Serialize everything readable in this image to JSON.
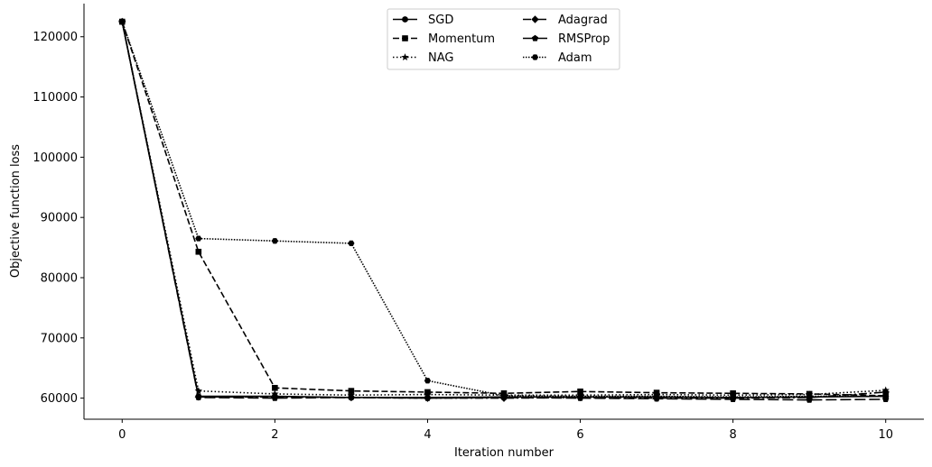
{
  "chart_data": {
    "type": "line",
    "title": "",
    "xlabel": "Iteration number",
    "ylabel": "Objective function loss",
    "x": [
      0,
      1,
      2,
      3,
      4,
      5,
      6,
      7,
      8,
      9,
      10
    ],
    "xlim": [
      -0.5,
      10.5
    ],
    "ylim": [
      56500,
      125500
    ],
    "xticks": [
      0,
      2,
      4,
      6,
      8,
      10
    ],
    "yticks": [
      60000,
      70000,
      80000,
      90000,
      100000,
      110000,
      120000
    ],
    "grid": false,
    "legend": {
      "placement": "top-center",
      "columns": 2
    },
    "series": [
      {
        "name": "SGD",
        "marker": "circle",
        "dash": "solid",
        "values": [
          122500,
          60300,
          60300,
          60100,
          60100,
          60200,
          60200,
          60200,
          60100,
          60200,
          60300
        ]
      },
      {
        "name": "Momentum",
        "marker": "square",
        "dash": "dashed",
        "values": [
          122500,
          84300,
          61700,
          61200,
          61000,
          60800,
          61100,
          60900,
          60800,
          60700,
          60400
        ]
      },
      {
        "name": "NAG",
        "marker": "star",
        "dash": "dotted",
        "values": [
          122500,
          61200,
          60700,
          60500,
          60600,
          60500,
          60500,
          60600,
          60500,
          60600,
          61300
        ]
      },
      {
        "name": "Adagrad",
        "marker": "diamond",
        "dash": "dashdot",
        "values": [
          122500,
          60200,
          60200,
          60100,
          60000,
          60000,
          60100,
          60000,
          60000,
          60100,
          61000
        ]
      },
      {
        "name": "RMSProp",
        "marker": "pentagon",
        "dash": "longdash",
        "values": [
          122500,
          60100,
          60000,
          60100,
          60000,
          60100,
          60000,
          59900,
          59800,
          59700,
          59800
        ]
      },
      {
        "name": "Adam",
        "marker": "hexagon",
        "dash": "finedot",
        "values": [
          122500,
          86500,
          86100,
          85700,
          62900,
          60400,
          60300,
          60300,
          60200,
          60300,
          60300
        ]
      }
    ]
  }
}
